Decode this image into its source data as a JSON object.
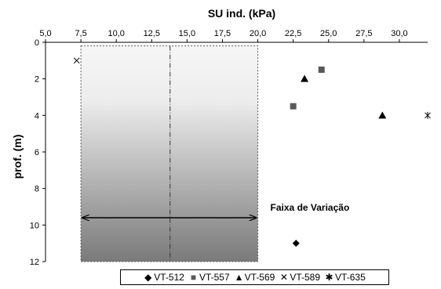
{
  "chart_data": {
    "type": "scatter",
    "title": "",
    "xlabel": "SU ind. (kPa)",
    "ylabel": "prof. (m)",
    "xlim": [
      5.0,
      32.0
    ],
    "ylim": [
      0,
      12
    ],
    "y_inverted": true,
    "x_axis_position": "top",
    "x_ticks": [
      5.0,
      7.5,
      10.0,
      12.5,
      15.0,
      17.5,
      20.0,
      22.5,
      25.0,
      27.5,
      30.0
    ],
    "x_tick_labels": [
      "5,0",
      "7,5",
      "10,0",
      "12,5",
      "15,0",
      "17,5",
      "20,0",
      "22,5",
      "25,0",
      "27,5",
      "30,0"
    ],
    "y_ticks": [
      0,
      2,
      4,
      6,
      8,
      10,
      12
    ],
    "y_tick_labels": [
      "0",
      "2",
      "4",
      "6",
      "8",
      "10",
      "12"
    ],
    "grid": false,
    "legend_position": "bottom",
    "series": [
      {
        "name": "VT-512",
        "marker": "diamond",
        "color": "#000000",
        "points": [
          {
            "x": 22.7,
            "y": 11.0
          }
        ]
      },
      {
        "name": "VT-557",
        "marker": "square",
        "color": "#595959",
        "points": [
          {
            "x": 24.5,
            "y": 1.5
          },
          {
            "x": 22.5,
            "y": 3.5
          }
        ]
      },
      {
        "name": "VT-569",
        "marker": "triangle",
        "color": "#000000",
        "points": [
          {
            "x": 23.3,
            "y": 2.0
          },
          {
            "x": 28.8,
            "y": 4.0
          }
        ]
      },
      {
        "name": "VT-589",
        "marker": "x",
        "color": "#000000",
        "points": [
          {
            "x": 7.2,
            "y": 1.0
          }
        ]
      },
      {
        "name": "VT-635",
        "marker": "asterisk",
        "color": "#000000",
        "points": [
          {
            "x": 32.0,
            "y": 4.0
          }
        ]
      }
    ],
    "range_band": {
      "x_min": 7.5,
      "x_max": 20.0,
      "x_mid": 13.8,
      "y_min": 0.2,
      "y_max": 12.0,
      "label": "Faixa de Variação"
    }
  },
  "legend": {
    "items": [
      {
        "symbol": "◆",
        "label": "VT-512",
        "color": "#000000"
      },
      {
        "symbol": "■",
        "label": "VT-557",
        "color": "#595959"
      },
      {
        "symbol": "▲",
        "label": "VT-569",
        "color": "#000000"
      },
      {
        "symbol": "✕",
        "label": "VT-589",
        "color": "#000000"
      },
      {
        "symbol": "✱",
        "label": "VT-635",
        "color": "#000000"
      }
    ]
  }
}
